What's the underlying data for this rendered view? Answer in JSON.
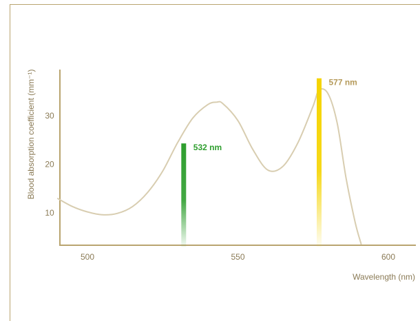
{
  "chart_data": {
    "type": "line",
    "title": "",
    "xlabel": "Wavelength (nm)",
    "ylabel": "Blood absorption coefficient (mm⁻¹)",
    "xlim": [
      490,
      610
    ],
    "ylim": [
      3,
      40
    ],
    "x_ticks": [
      "500",
      "550",
      "600"
    ],
    "y_ticks": [
      "10",
      "20",
      "30"
    ],
    "grid": false,
    "series": [
      {
        "x": [
          490,
          495,
          500,
          505,
          510,
          515,
          520,
          525,
          530,
          535,
          540,
          543,
          545,
          550,
          555,
          560,
          565,
          570,
          575,
          577,
          580,
          583,
          586,
          589,
          591
        ],
        "y": [
          13,
          11.3,
          10.2,
          9.6,
          9.9,
          11.3,
          14.2,
          18.6,
          24.5,
          29.5,
          32.3,
          32.8,
          32.5,
          29,
          23,
          18.8,
          19.6,
          24.5,
          32,
          35.3,
          34.5,
          28.5,
          17,
          8,
          3.5
        ],
        "color": "#d8cdb0"
      }
    ],
    "lasers": [
      {
        "label": "532 nm",
        "x": 532,
        "top": 24.3,
        "color": "#2e9e2e"
      },
      {
        "label": "577 nm",
        "x": 577,
        "top": 37.7,
        "color": "#f5d400",
        "label_color": "#b59a5a"
      }
    ],
    "colors": {
      "axis": "#b9a46f",
      "text": "#8a7a55",
      "curve": "#d8cdb0"
    }
  }
}
